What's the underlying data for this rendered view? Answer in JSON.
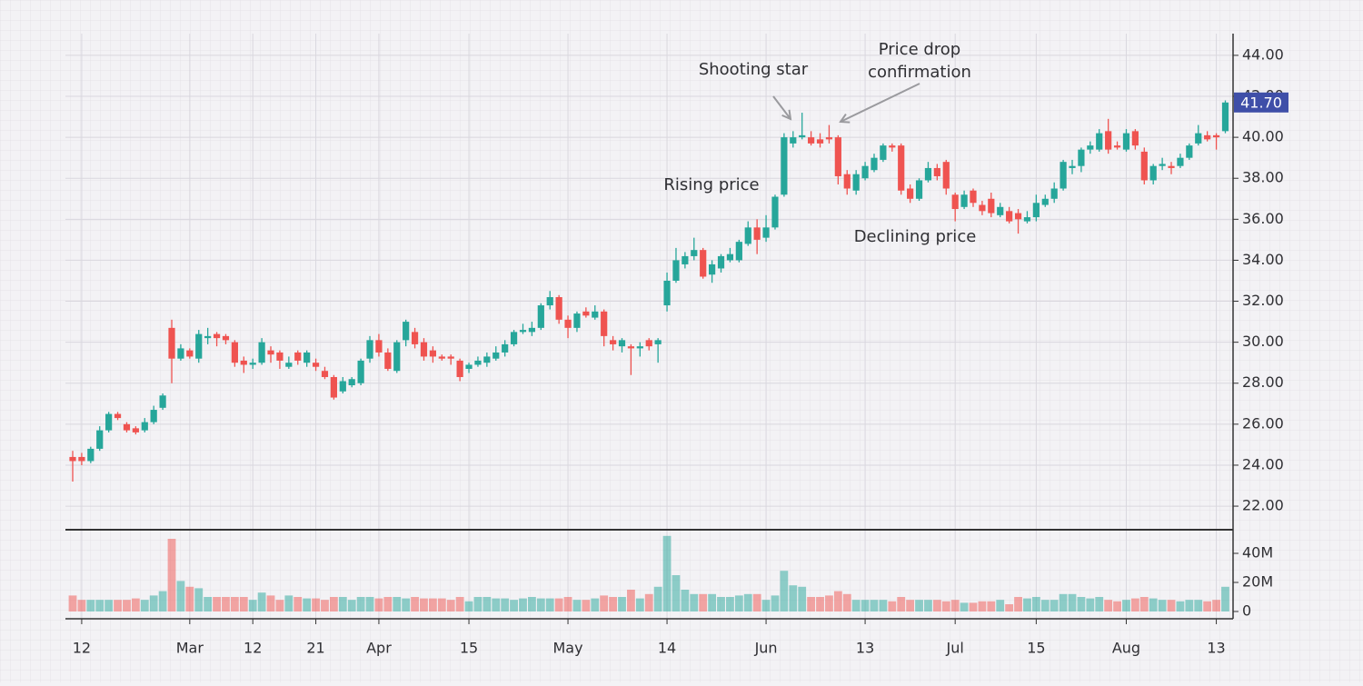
{
  "chart_data": [
    {
      "type": "candlestick",
      "categories": [
        null,
        "12",
        null,
        null,
        null,
        null,
        null,
        null,
        null,
        null,
        null,
        null,
        null,
        "Mar",
        null,
        null,
        null,
        null,
        null,
        null,
        "12",
        null,
        null,
        null,
        null,
        null,
        null,
        "21",
        null,
        null,
        null,
        null,
        null,
        null,
        "Apr",
        null,
        null,
        null,
        null,
        null,
        null,
        null,
        null,
        null,
        "15",
        null,
        null,
        null,
        null,
        null,
        null,
        null,
        null,
        null,
        null,
        "May",
        null,
        null,
        null,
        null,
        null,
        null,
        null,
        null,
        null,
        null,
        "14",
        null,
        null,
        null,
        null,
        null,
        null,
        null,
        null,
        null,
        null,
        "Jun",
        null,
        null,
        null,
        null,
        null,
        null,
        null,
        null,
        null,
        null,
        "13",
        null,
        null,
        null,
        null,
        null,
        null,
        null,
        null,
        null,
        "Jul",
        null,
        null,
        null,
        null,
        null,
        null,
        null,
        null,
        "15",
        null,
        null,
        null,
        null,
        null,
        null,
        null,
        null,
        null,
        "Aug",
        null,
        null,
        null,
        null,
        null,
        null,
        null,
        null,
        null,
        "13",
        null
      ],
      "open": [
        24.4,
        24.4,
        24.2,
        24.8,
        25.7,
        26.5,
        26.0,
        25.8,
        25.7,
        26.1,
        26.8,
        30.7,
        29.2,
        29.6,
        29.2,
        30.2,
        30.4,
        30.3,
        30.0,
        29.1,
        28.9,
        29.0,
        29.6,
        29.5,
        28.8,
        29.5,
        29.0,
        29.0,
        28.6,
        28.3,
        27.6,
        27.9,
        28.0,
        29.2,
        30.1,
        29.5,
        28.6,
        30.1,
        30.5,
        30.0,
        29.6,
        29.3,
        29.3,
        29.1,
        28.7,
        28.9,
        29.0,
        29.2,
        29.5,
        29.9,
        30.5,
        30.5,
        30.7,
        31.8,
        32.2,
        31.1,
        30.7,
        31.5,
        31.2,
        31.5,
        30.1,
        29.8,
        29.8,
        29.7,
        30.1,
        29.9,
        31.8,
        33.0,
        33.8,
        34.2,
        34.5,
        33.3,
        33.6,
        34.0,
        34.0,
        34.8,
        35.6,
        35.1,
        35.6,
        37.2,
        39.7,
        40.0,
        40.0,
        39.9,
        40.0,
        40.0,
        38.2,
        37.4,
        38.0,
        38.4,
        38.9,
        39.6,
        39.6,
        37.5,
        37.0,
        37.9,
        38.5,
        38.8,
        37.2,
        36.6,
        37.4,
        36.7,
        37.0,
        36.2,
        36.4,
        36.3,
        35.9,
        36.1,
        36.7,
        37.0,
        37.5,
        38.5,
        38.6,
        39.4,
        39.4,
        40.3,
        39.6,
        39.4,
        40.3,
        39.3,
        37.9,
        38.6,
        38.6,
        38.6,
        39.0,
        39.7,
        40.1,
        40.1,
        40.3
      ],
      "high": [
        24.7,
        24.6,
        24.9,
        25.9,
        26.6,
        26.6,
        26.1,
        25.9,
        26.3,
        26.9,
        27.5,
        31.1,
        29.9,
        29.7,
        30.6,
        30.7,
        30.5,
        30.4,
        30.1,
        29.3,
        29.2,
        30.2,
        29.8,
        29.6,
        29.3,
        29.6,
        29.6,
        29.2,
        28.8,
        28.4,
        28.3,
        28.3,
        29.2,
        30.3,
        30.4,
        29.7,
        30.1,
        31.1,
        30.7,
        30.2,
        29.8,
        29.4,
        29.4,
        29.2,
        29.0,
        29.3,
        29.5,
        29.8,
        30.1,
        30.6,
        30.9,
        31.0,
        31.9,
        32.5,
        32.3,
        31.3,
        31.5,
        31.7,
        31.8,
        31.6,
        30.3,
        30.2,
        29.9,
        30.0,
        30.2,
        30.2,
        33.4,
        34.6,
        34.4,
        35.1,
        34.6,
        34.0,
        34.3,
        34.6,
        35.0,
        35.9,
        36.0,
        36.2,
        37.2,
        40.2,
        40.3,
        41.2,
        40.3,
        40.2,
        40.6,
        40.1,
        38.4,
        38.4,
        38.8,
        39.2,
        39.7,
        39.7,
        39.7,
        37.7,
        38.0,
        38.8,
        38.7,
        38.9,
        37.3,
        37.4,
        37.5,
        36.9,
        37.3,
        36.8,
        36.6,
        36.5,
        36.4,
        37.2,
        37.2,
        37.8,
        38.9,
        38.9,
        39.5,
        39.8,
        40.4,
        40.9,
        39.8,
        40.4,
        40.4,
        39.5,
        38.7,
        39.0,
        38.8,
        39.2,
        39.7,
        40.6,
        40.3,
        40.2,
        41.8
      ],
      "low": [
        23.2,
        24.0,
        24.1,
        24.7,
        25.6,
        26.2,
        25.6,
        25.5,
        25.6,
        26.0,
        26.7,
        28.0,
        29.1,
        29.2,
        29.0,
        29.9,
        29.8,
        29.9,
        28.8,
        28.5,
        28.7,
        28.9,
        29.0,
        28.7,
        28.7,
        28.9,
        28.8,
        28.6,
        28.2,
        27.2,
        27.5,
        27.8,
        27.9,
        29.0,
        29.3,
        28.6,
        28.5,
        29.8,
        29.7,
        29.1,
        29.0,
        29.1,
        28.9,
        28.1,
        28.5,
        28.8,
        28.8,
        29.1,
        29.3,
        29.8,
        30.4,
        30.3,
        30.6,
        31.6,
        30.9,
        30.2,
        30.5,
        31.2,
        31.1,
        29.8,
        29.6,
        29.5,
        28.4,
        29.3,
        29.6,
        29.0,
        31.5,
        32.9,
        33.6,
        34.0,
        33.1,
        32.9,
        33.4,
        33.9,
        33.9,
        34.7,
        34.3,
        34.9,
        35.5,
        37.1,
        39.5,
        39.9,
        39.6,
        39.5,
        39.7,
        37.7,
        37.2,
        37.2,
        37.9,
        38.3,
        38.8,
        39.3,
        37.2,
        36.8,
        36.9,
        37.8,
        37.9,
        37.2,
        35.9,
        36.5,
        36.6,
        36.2,
        36.1,
        36.1,
        35.8,
        35.3,
        35.8,
        35.9,
        36.6,
        36.8,
        37.4,
        38.2,
        38.3,
        39.2,
        39.3,
        39.2,
        39.4,
        39.3,
        39.4,
        37.7,
        37.7,
        38.4,
        38.2,
        38.5,
        38.9,
        39.6,
        39.8,
        39.4,
        40.2
      ],
      "close": [
        24.2,
        24.2,
        24.8,
        25.7,
        26.5,
        26.3,
        25.7,
        25.6,
        26.1,
        26.7,
        27.4,
        29.2,
        29.7,
        29.3,
        30.4,
        30.3,
        30.2,
        30.1,
        29.0,
        28.9,
        29.0,
        30.0,
        29.4,
        29.1,
        29.0,
        29.1,
        29.5,
        28.8,
        28.3,
        27.3,
        28.1,
        28.2,
        29.1,
        30.1,
        29.5,
        28.7,
        30.0,
        31.0,
        29.9,
        29.3,
        29.3,
        29.2,
        29.2,
        28.3,
        28.9,
        29.1,
        29.3,
        29.5,
        29.9,
        30.5,
        30.6,
        30.7,
        31.8,
        32.2,
        31.1,
        30.7,
        31.4,
        31.3,
        31.5,
        30.3,
        29.9,
        30.1,
        29.7,
        29.8,
        29.8,
        30.1,
        33.0,
        34.0,
        34.2,
        34.5,
        33.2,
        33.8,
        34.2,
        34.3,
        34.9,
        35.6,
        35.0,
        35.6,
        37.1,
        40.0,
        40.0,
        40.1,
        39.7,
        39.7,
        39.9,
        38.1,
        37.5,
        38.2,
        38.6,
        39.0,
        39.6,
        39.5,
        37.4,
        37.0,
        37.9,
        38.5,
        38.1,
        37.5,
        36.5,
        37.2,
        36.8,
        36.4,
        36.3,
        36.6,
        35.9,
        36.0,
        36.1,
        36.8,
        37.0,
        37.5,
        38.8,
        38.6,
        39.4,
        39.6,
        40.2,
        39.4,
        39.5,
        40.2,
        39.6,
        37.9,
        38.6,
        38.7,
        38.5,
        39.0,
        39.6,
        40.2,
        39.9,
        40.0,
        41.7
      ],
      "up_color": "#26a69a",
      "down_color": "#ef5350",
      "ylim": [
        20.85,
        45.06
      ],
      "yticks": [
        {
          "value": 22,
          "label": "22.00"
        },
        {
          "value": 24,
          "label": "24.00"
        },
        {
          "value": 26,
          "label": "26.00"
        },
        {
          "value": 28,
          "label": "28.00"
        },
        {
          "value": 30,
          "label": "30.00"
        },
        {
          "value": 32,
          "label": "32.00"
        },
        {
          "value": 34,
          "label": "34.00"
        },
        {
          "value": 36,
          "label": "36.00"
        },
        {
          "value": 38,
          "label": "38.00"
        },
        {
          "value": 40,
          "label": "40.00"
        },
        {
          "value": 42,
          "label": "42.00"
        },
        {
          "value": 44,
          "label": "44.00"
        }
      ],
      "last_price": {
        "value": 41.7,
        "label": "41.70"
      },
      "grid": true,
      "annotations": [
        "Shooting star",
        "Price drop",
        "confirmation",
        "Rising price",
        "Declining price"
      ]
    },
    {
      "type": "bar",
      "values": [
        11,
        8,
        8,
        8,
        8,
        8,
        8,
        9,
        8,
        11,
        14,
        50,
        21,
        17,
        16,
        10,
        10,
        10,
        10,
        10,
        8,
        13,
        11,
        8,
        11,
        10,
        9,
        9,
        8,
        10,
        10,
        8,
        10,
        10,
        9,
        10,
        10,
        9,
        10,
        9,
        9,
        9,
        8,
        10,
        7,
        10,
        10,
        9,
        9,
        8,
        9,
        10,
        9,
        9,
        9,
        10,
        8,
        8,
        9,
        11,
        10,
        10,
        15,
        9,
        12,
        17,
        52,
        25,
        15,
        12,
        12,
        12,
        10,
        10,
        11,
        12,
        12,
        8,
        11,
        28,
        18,
        17,
        10,
        10,
        11,
        14,
        12,
        8,
        8,
        8,
        8,
        7,
        10,
        8,
        8,
        8,
        8,
        7,
        8,
        6,
        6,
        7,
        7,
        8,
        5,
        10,
        9,
        10,
        8,
        8,
        12,
        12,
        10,
        9,
        10,
        8,
        7,
        8,
        9,
        10,
        9,
        8,
        8,
        7,
        8,
        8,
        7,
        8,
        17
      ],
      "ylim": [
        -5,
        56.25
      ],
      "yticks": [
        0,
        {
          "value": 20,
          "label": "20M"
        },
        {
          "value": 40,
          "label": "40M"
        }
      ]
    }
  ]
}
